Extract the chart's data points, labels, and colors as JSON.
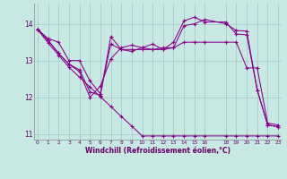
{
  "xlabel": "Windchill (Refroidissement éolien,°C)",
  "bg_color": "#c8e8e4",
  "grid_color": "#a8ccc8",
  "line_color": "#880088",
  "xlim": [
    -0.3,
    23.3
  ],
  "ylim": [
    10.85,
    14.55
  ],
  "yticks": [
    11,
    12,
    13,
    14
  ],
  "xticks": [
    0,
    1,
    2,
    3,
    4,
    5,
    6,
    7,
    8,
    9,
    10,
    11,
    12,
    13,
    14,
    15,
    16,
    18,
    19,
    20,
    21,
    22,
    23
  ],
  "x_vals": [
    0,
    1,
    2,
    3,
    4,
    5,
    6,
    7,
    8,
    9,
    10,
    11,
    12,
    13,
    14,
    15,
    16,
    18,
    19,
    20,
    21,
    22,
    23
  ],
  "series": [
    [
      13.85,
      13.6,
      13.5,
      13.0,
      13.0,
      12.45,
      12.1,
      13.45,
      13.3,
      13.3,
      13.3,
      13.3,
      13.35,
      13.35,
      13.5,
      13.5,
      13.5,
      13.5,
      13.5,
      12.8,
      12.8,
      11.3,
      11.25
    ],
    [
      13.85,
      13.55,
      13.2,
      12.9,
      12.75,
      12.15,
      12.05,
      13.65,
      13.3,
      13.25,
      13.35,
      13.3,
      13.3,
      13.35,
      13.95,
      14.0,
      14.12,
      14.0,
      13.82,
      13.8,
      12.2,
      11.25,
      11.2
    ],
    [
      13.85,
      13.55,
      13.2,
      12.9,
      12.7,
      12.0,
      12.3,
      13.05,
      13.35,
      13.42,
      13.35,
      13.45,
      13.3,
      13.5,
      14.08,
      14.18,
      14.05,
      14.05,
      13.72,
      13.7,
      12.2,
      11.25,
      11.2
    ],
    [
      13.85,
      13.48,
      13.15,
      12.82,
      12.55,
      12.28,
      12.02,
      11.75,
      11.48,
      11.22,
      10.95,
      10.95,
      10.95,
      10.95,
      10.95,
      10.95,
      10.95,
      10.95,
      10.95,
      10.95,
      10.95,
      10.95,
      10.95
    ]
  ]
}
